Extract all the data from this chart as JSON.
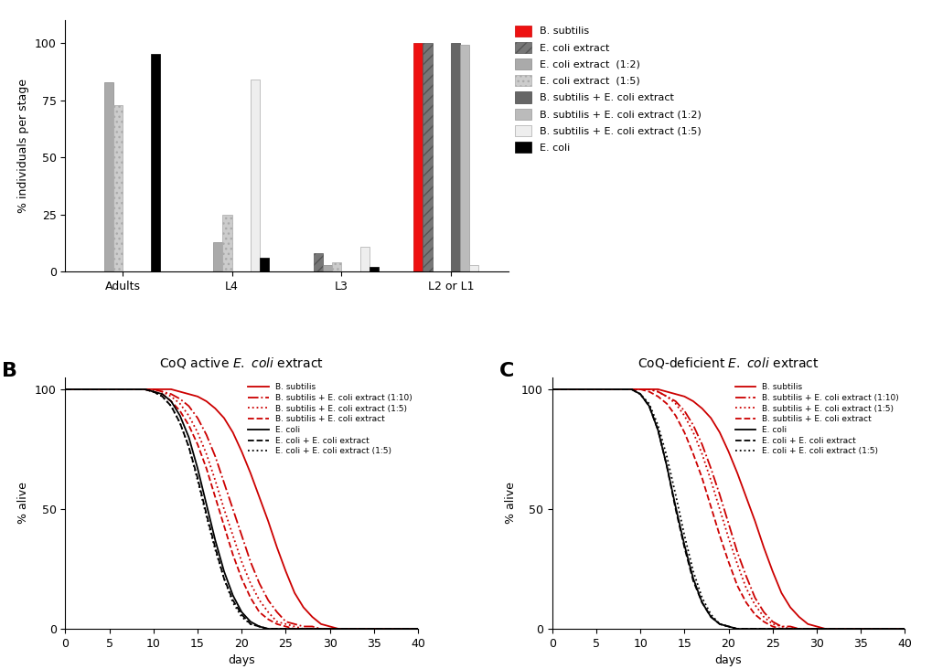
{
  "panel_A": {
    "categories": [
      "Adults",
      "L4",
      "L3",
      "L2 or L1"
    ],
    "series_order": [
      "B. subtilis",
      "E. coli extract",
      "E. coli extract (1:2)",
      "E. coli extract (1:5)",
      "B. subtilis + E. coli extract",
      "B. subtilis + E. coli extract (1:2)",
      "B. subtilis + E. coli extract (1:5)",
      "E. coli"
    ],
    "series": {
      "B. subtilis": {
        "color": "#ee1111",
        "hatch": "",
        "edgecolor": "#cc0000",
        "values": [
          0,
          0,
          0,
          100
        ]
      },
      "E. coli extract": {
        "color": "#777777",
        "hatch": "///",
        "edgecolor": "#555555",
        "values": [
          0,
          0,
          8,
          100
        ]
      },
      "E. coli extract (1:2)": {
        "color": "#aaaaaa",
        "hatch": "",
        "edgecolor": "#888888",
        "values": [
          83,
          13,
          3,
          0
        ]
      },
      "E. coli extract (1:5)": {
        "color": "#cccccc",
        "hatch": "...",
        "edgecolor": "#aaaaaa",
        "values": [
          73,
          25,
          4,
          0
        ]
      },
      "B. subtilis + E. coli extract": {
        "color": "#666666",
        "hatch": "",
        "edgecolor": "#444444",
        "values": [
          0,
          0,
          0,
          100
        ]
      },
      "B. subtilis + E. coli extract (1:2)": {
        "color": "#bbbbbb",
        "hatch": "",
        "edgecolor": "#999999",
        "values": [
          0,
          0,
          0,
          99
        ]
      },
      "B. subtilis + E. coli extract (1:5)": {
        "color": "#eeeeee",
        "hatch": "",
        "edgecolor": "#aaaaaa",
        "values": [
          0,
          84,
          11,
          3
        ]
      },
      "E. coli": {
        "color": "#000000",
        "hatch": "",
        "edgecolor": "#000000",
        "values": [
          95,
          6,
          2,
          0
        ]
      }
    },
    "ylabel": "% individuals per stage",
    "ylim": [
      0,
      110
    ],
    "yticks": [
      0,
      25,
      50,
      75,
      100
    ]
  },
  "panel_B": {
    "title_prefix": "CoQ active ",
    "title_suffix": " extract",
    "series": [
      {
        "label": "B. subtilis",
        "color": "#cc0000",
        "linestyle": "-",
        "lw": 1.3,
        "x": [
          0,
          1,
          2,
          3,
          4,
          5,
          6,
          7,
          8,
          9,
          10,
          11,
          12,
          13,
          14,
          15,
          16,
          17,
          18,
          19,
          20,
          21,
          22,
          23,
          24,
          25,
          26,
          27,
          28,
          29,
          30,
          31,
          32,
          33,
          34,
          35,
          40
        ],
        "y": [
          100,
          100,
          100,
          100,
          100,
          100,
          100,
          100,
          100,
          100,
          100,
          100,
          100,
          99,
          98,
          97,
          95,
          92,
          88,
          82,
          74,
          65,
          55,
          45,
          34,
          24,
          15,
          9,
          5,
          2,
          1,
          0,
          0,
          0,
          0,
          0,
          0
        ]
      },
      {
        "label": "B. subtilis + E. coli extract (1:10)",
        "color": "#cc0000",
        "linestyle": "-.",
        "lw": 1.3,
        "x": [
          0,
          1,
          2,
          3,
          4,
          5,
          6,
          7,
          8,
          9,
          10,
          11,
          12,
          13,
          14,
          15,
          16,
          17,
          18,
          19,
          20,
          21,
          22,
          23,
          24,
          25,
          26,
          27,
          28,
          29,
          30,
          40
        ],
        "y": [
          100,
          100,
          100,
          100,
          100,
          100,
          100,
          100,
          100,
          100,
          100,
          99,
          98,
          96,
          93,
          88,
          81,
          72,
          61,
          50,
          39,
          28,
          19,
          12,
          7,
          3,
          2,
          1,
          1,
          0,
          0,
          0
        ]
      },
      {
        "label": "B. subtilis + E. coli extract (1:5)",
        "color": "#cc0000",
        "linestyle": ":",
        "lw": 1.3,
        "x": [
          0,
          1,
          2,
          3,
          4,
          5,
          6,
          7,
          8,
          9,
          10,
          11,
          12,
          13,
          14,
          15,
          16,
          17,
          18,
          19,
          20,
          21,
          22,
          23,
          24,
          25,
          26,
          27,
          28,
          29,
          30,
          40
        ],
        "y": [
          100,
          100,
          100,
          100,
          100,
          100,
          100,
          100,
          100,
          100,
          100,
          99,
          97,
          94,
          89,
          82,
          73,
          62,
          50,
          39,
          28,
          19,
          12,
          7,
          3,
          2,
          1,
          0,
          0,
          0,
          0,
          0
        ]
      },
      {
        "label": "B. subtilis + E. coli extract",
        "color": "#cc0000",
        "linestyle": "--",
        "lw": 1.3,
        "x": [
          0,
          1,
          2,
          3,
          4,
          5,
          6,
          7,
          8,
          9,
          10,
          11,
          12,
          13,
          14,
          15,
          16,
          17,
          18,
          19,
          20,
          21,
          22,
          23,
          24,
          25,
          26,
          27,
          28,
          29,
          30,
          40
        ],
        "y": [
          100,
          100,
          100,
          100,
          100,
          100,
          100,
          100,
          100,
          100,
          99,
          98,
          95,
          91,
          85,
          77,
          67,
          55,
          43,
          31,
          21,
          13,
          7,
          4,
          2,
          1,
          0,
          0,
          0,
          0,
          0,
          0
        ]
      },
      {
        "label": "E. coli",
        "color": "#000000",
        "linestyle": "-",
        "lw": 1.3,
        "x": [
          0,
          1,
          2,
          3,
          4,
          5,
          6,
          7,
          8,
          9,
          10,
          11,
          12,
          13,
          14,
          15,
          16,
          17,
          18,
          19,
          20,
          21,
          22,
          23,
          24,
          25,
          40
        ],
        "y": [
          100,
          100,
          100,
          100,
          100,
          100,
          100,
          100,
          100,
          100,
          99,
          98,
          95,
          89,
          80,
          67,
          52,
          37,
          24,
          14,
          7,
          3,
          1,
          0,
          0,
          0,
          0
        ]
      },
      {
        "label": "E. coli + E. coli extract",
        "color": "#000000",
        "linestyle": "--",
        "lw": 1.3,
        "x": [
          0,
          1,
          2,
          3,
          4,
          5,
          6,
          7,
          8,
          9,
          10,
          11,
          12,
          13,
          14,
          15,
          16,
          17,
          18,
          19,
          20,
          21,
          22,
          23,
          24,
          25,
          40
        ],
        "y": [
          100,
          100,
          100,
          100,
          100,
          100,
          100,
          100,
          100,
          100,
          99,
          97,
          93,
          86,
          76,
          63,
          48,
          34,
          21,
          12,
          6,
          2,
          1,
          0,
          0,
          0,
          0
        ]
      },
      {
        "label": "E. coli + E. coli extract (1:5)",
        "color": "#000000",
        "linestyle": ":",
        "lw": 1.3,
        "x": [
          0,
          1,
          2,
          3,
          4,
          5,
          6,
          7,
          8,
          9,
          10,
          11,
          12,
          13,
          14,
          15,
          16,
          17,
          18,
          19,
          20,
          21,
          22,
          23,
          24,
          25,
          40
        ],
        "y": [
          100,
          100,
          100,
          100,
          100,
          100,
          100,
          100,
          100,
          100,
          99,
          97,
          93,
          86,
          76,
          62,
          47,
          33,
          21,
          11,
          5,
          2,
          1,
          0,
          0,
          0,
          0
        ]
      }
    ],
    "ylabel": "% alive",
    "xlabel": "days",
    "xlim": [
      0,
      40
    ],
    "ylim": [
      0,
      105
    ],
    "yticks": [
      0,
      50,
      100
    ],
    "xticks": [
      0,
      5,
      10,
      15,
      20,
      25,
      30,
      35,
      40
    ]
  },
  "panel_C": {
    "title_prefix": "CoQ-deficient ",
    "title_suffix": " extract",
    "series": [
      {
        "label": "B. subtilis",
        "color": "#cc0000",
        "linestyle": "-",
        "lw": 1.3,
        "x": [
          0,
          1,
          2,
          3,
          4,
          5,
          6,
          7,
          8,
          9,
          10,
          11,
          12,
          13,
          14,
          15,
          16,
          17,
          18,
          19,
          20,
          21,
          22,
          23,
          24,
          25,
          26,
          27,
          28,
          29,
          30,
          31,
          32,
          33,
          34,
          35,
          40
        ],
        "y": [
          100,
          100,
          100,
          100,
          100,
          100,
          100,
          100,
          100,
          100,
          100,
          100,
          100,
          99,
          98,
          97,
          95,
          92,
          88,
          82,
          74,
          65,
          55,
          45,
          34,
          24,
          15,
          9,
          5,
          2,
          1,
          0,
          0,
          0,
          0,
          0,
          0
        ]
      },
      {
        "label": "B. subtilis + E. coli extract (1:10)",
        "color": "#cc0000",
        "linestyle": "-.",
        "lw": 1.3,
        "x": [
          0,
          1,
          2,
          3,
          4,
          5,
          6,
          7,
          8,
          9,
          10,
          11,
          12,
          13,
          14,
          15,
          16,
          17,
          18,
          19,
          20,
          21,
          22,
          23,
          24,
          25,
          26,
          27,
          28,
          29,
          30,
          40
        ],
        "y": [
          100,
          100,
          100,
          100,
          100,
          100,
          100,
          100,
          100,
          100,
          100,
          100,
          99,
          97,
          95,
          91,
          85,
          77,
          67,
          56,
          44,
          32,
          22,
          13,
          7,
          3,
          1,
          1,
          0,
          0,
          0,
          0
        ]
      },
      {
        "label": "B. subtilis + E. coli extract (1:5)",
        "color": "#cc0000",
        "linestyle": ":",
        "lw": 1.3,
        "x": [
          0,
          1,
          2,
          3,
          4,
          5,
          6,
          7,
          8,
          9,
          10,
          11,
          12,
          13,
          14,
          15,
          16,
          17,
          18,
          19,
          20,
          21,
          22,
          23,
          24,
          25,
          26,
          27,
          28,
          29,
          30,
          40
        ],
        "y": [
          100,
          100,
          100,
          100,
          100,
          100,
          100,
          100,
          100,
          100,
          100,
          100,
          99,
          97,
          94,
          89,
          82,
          73,
          62,
          50,
          38,
          27,
          17,
          10,
          5,
          2,
          1,
          0,
          0,
          0,
          0,
          0
        ]
      },
      {
        "label": "B. subtilis + E. coli extract",
        "color": "#cc0000",
        "linestyle": "--",
        "lw": 1.3,
        "x": [
          0,
          1,
          2,
          3,
          4,
          5,
          6,
          7,
          8,
          9,
          10,
          11,
          12,
          13,
          14,
          15,
          16,
          17,
          18,
          19,
          20,
          21,
          22,
          23,
          24,
          25,
          26,
          27,
          28,
          29,
          30,
          40
        ],
        "y": [
          100,
          100,
          100,
          100,
          100,
          100,
          100,
          100,
          100,
          100,
          100,
          99,
          97,
          94,
          89,
          82,
          73,
          63,
          51,
          39,
          28,
          18,
          11,
          6,
          3,
          1,
          0,
          0,
          0,
          0,
          0,
          0
        ]
      },
      {
        "label": "E. coli",
        "color": "#000000",
        "linestyle": "-",
        "lw": 1.3,
        "x": [
          0,
          1,
          2,
          3,
          4,
          5,
          6,
          7,
          8,
          9,
          10,
          11,
          12,
          13,
          14,
          15,
          16,
          17,
          18,
          19,
          20,
          21,
          22,
          40
        ],
        "y": [
          100,
          100,
          100,
          100,
          100,
          100,
          100,
          100,
          100,
          100,
          98,
          93,
          83,
          68,
          51,
          35,
          21,
          11,
          5,
          2,
          1,
          0,
          0,
          0
        ]
      },
      {
        "label": "E. coli + E. coli extract",
        "color": "#000000",
        "linestyle": "--",
        "lw": 1.3,
        "x": [
          0,
          1,
          2,
          3,
          4,
          5,
          6,
          7,
          8,
          9,
          10,
          11,
          12,
          13,
          14,
          15,
          16,
          17,
          18,
          19,
          20,
          21,
          22,
          40
        ],
        "y": [
          100,
          100,
          100,
          100,
          100,
          100,
          100,
          100,
          100,
          100,
          98,
          93,
          83,
          68,
          50,
          34,
          20,
          11,
          5,
          2,
          1,
          0,
          0,
          0
        ]
      },
      {
        "label": "E. coli + E. coli extract (1:5)",
        "color": "#000000",
        "linestyle": ":",
        "lw": 1.3,
        "x": [
          0,
          1,
          2,
          3,
          4,
          5,
          6,
          7,
          8,
          9,
          10,
          11,
          12,
          13,
          14,
          15,
          16,
          17,
          18,
          19,
          20,
          21,
          22,
          23,
          40
        ],
        "y": [
          100,
          100,
          100,
          100,
          100,
          100,
          100,
          100,
          100,
          100,
          98,
          94,
          85,
          72,
          56,
          39,
          24,
          13,
          6,
          2,
          1,
          0,
          0,
          0,
          0
        ]
      }
    ],
    "ylabel": "% alive",
    "xlabel": "days",
    "xlim": [
      0,
      40
    ],
    "ylim": [
      0,
      105
    ],
    "yticks": [
      0,
      50,
      100
    ],
    "xticks": [
      0,
      5,
      10,
      15,
      20,
      25,
      30,
      35,
      40
    ]
  },
  "legend_A": [
    {
      "label": "B. subtilis",
      "facecolor": "#ee1111",
      "edgecolor": "#cc0000",
      "hatch": ""
    },
    {
      "label": "E. coli extract",
      "facecolor": "#777777",
      "edgecolor": "#555555",
      "hatch": "///"
    },
    {
      "label": "E. coli extract  (1:2)",
      "facecolor": "#aaaaaa",
      "edgecolor": "#888888",
      "hatch": ""
    },
    {
      "label": "E. coli extract  (1:5)",
      "facecolor": "#cccccc",
      "edgecolor": "#aaaaaa",
      "hatch": "..."
    },
    {
      "label": "B. subtilis + E. coli extract",
      "facecolor": "#666666",
      "edgecolor": "#444444",
      "hatch": ""
    },
    {
      "label": "B. subtilis + E. coli extract (1:2)",
      "facecolor": "#bbbbbb",
      "edgecolor": "#999999",
      "hatch": ""
    },
    {
      "label": "B. subtilis + E. coli extract (1:5)",
      "facecolor": "#eeeeee",
      "edgecolor": "#aaaaaa",
      "hatch": ""
    },
    {
      "label": "E. coli",
      "facecolor": "#000000",
      "edgecolor": "#000000",
      "hatch": ""
    }
  ]
}
